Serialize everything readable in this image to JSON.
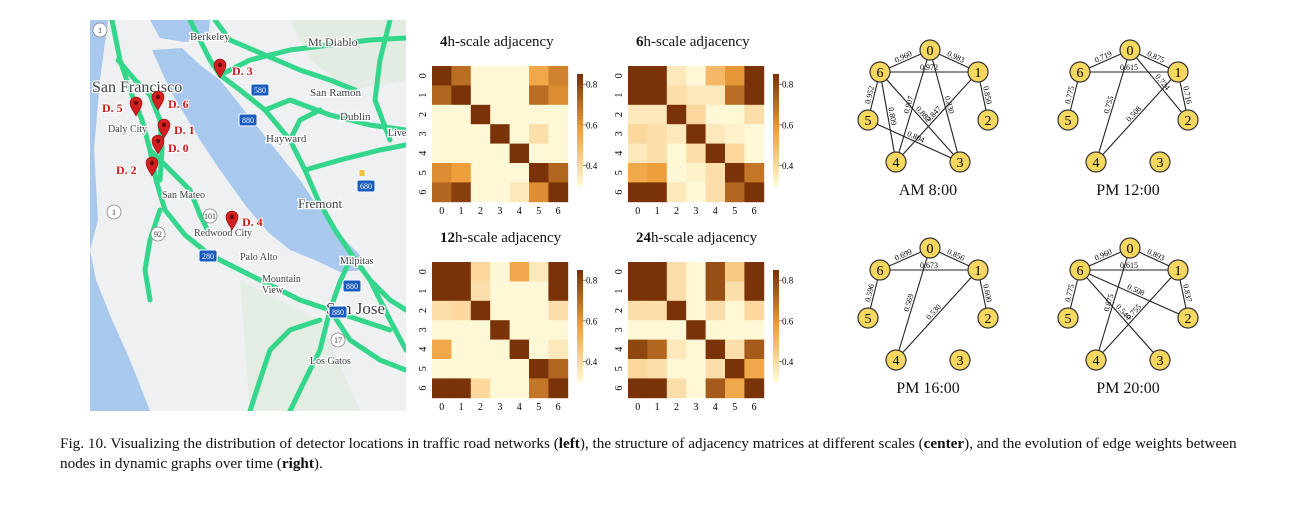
{
  "map": {
    "places": [
      {
        "id": "berkeley",
        "label": "Berkeley"
      },
      {
        "id": "mt-diablo",
        "label": "Mt Diablo"
      },
      {
        "id": "san-francisco",
        "label": "San Francisco"
      },
      {
        "id": "san-ramon",
        "label": "San Ramon"
      },
      {
        "id": "dublin",
        "label": "Dublin"
      },
      {
        "id": "daly-city",
        "label": "Daly City"
      },
      {
        "id": "hayward",
        "label": "Hayward"
      },
      {
        "id": "live",
        "label": "Live"
      },
      {
        "id": "san-mateo",
        "label": "San Mateo"
      },
      {
        "id": "fremont",
        "label": "Fremont"
      },
      {
        "id": "redwood-city",
        "label": "Redwood City"
      },
      {
        "id": "palo-alto",
        "label": "Palo Alto"
      },
      {
        "id": "milpitas",
        "label": "Milpitas"
      },
      {
        "id": "mountain-view",
        "label": "Mountain\nView"
      },
      {
        "id": "san-jose",
        "label": "San Jose"
      },
      {
        "id": "los-gatos",
        "label": "Los Gatos"
      }
    ],
    "shields": [
      "1",
      "580",
      "880",
      "680",
      "880",
      "101",
      "92",
      "1",
      "280",
      "17",
      "880"
    ],
    "detectors": [
      "D. 0",
      "D. 1",
      "D. 2",
      "D. 3",
      "D. 4",
      "D. 5",
      "D. 6"
    ]
  },
  "heatmaps": [
    {
      "title_bold": "4",
      "title_rest": "h-scale adjacency",
      "matrix": [
        [
          0.85,
          0.7,
          0.25,
          0.25,
          0.25,
          0.55,
          0.65
        ],
        [
          0.72,
          0.85,
          0.28,
          0.25,
          0.25,
          0.7,
          0.62
        ],
        [
          0.25,
          0.25,
          0.85,
          0.3,
          0.25,
          0.25,
          0.28
        ],
        [
          0.25,
          0.3,
          0.28,
          0.85,
          0.3,
          0.38,
          0.28
        ],
        [
          0.25,
          0.25,
          0.25,
          0.3,
          0.85,
          0.3,
          0.28
        ],
        [
          0.62,
          0.58,
          0.25,
          0.3,
          0.3,
          0.85,
          0.72
        ],
        [
          0.72,
          0.82,
          0.25,
          0.25,
          0.35,
          0.62,
          0.85
        ]
      ]
    },
    {
      "title_bold": "6",
      "title_rest": "h-scale adjacency",
      "matrix": [
        [
          0.85,
          0.85,
          0.35,
          0.3,
          0.5,
          0.6,
          0.85
        ],
        [
          0.85,
          0.85,
          0.38,
          0.35,
          0.35,
          0.7,
          0.85
        ],
        [
          0.35,
          0.35,
          0.85,
          0.4,
          0.3,
          0.3,
          0.38
        ],
        [
          0.4,
          0.38,
          0.35,
          0.85,
          0.35,
          0.32,
          0.3
        ],
        [
          0.35,
          0.38,
          0.3,
          0.38,
          0.85,
          0.4,
          0.3
        ],
        [
          0.55,
          0.58,
          0.3,
          0.32,
          0.38,
          0.85,
          0.68
        ],
        [
          0.85,
          0.85,
          0.35,
          0.3,
          0.38,
          0.72,
          0.85
        ]
      ]
    },
    {
      "title_bold": "12",
      "title_rest": "h-scale adjacency",
      "matrix": [
        [
          0.85,
          0.85,
          0.4,
          0.25,
          0.55,
          0.35,
          0.85
        ],
        [
          0.85,
          0.85,
          0.38,
          0.25,
          0.3,
          0.3,
          0.85
        ],
        [
          0.38,
          0.4,
          0.85,
          0.3,
          0.3,
          0.3,
          0.38
        ],
        [
          0.3,
          0.3,
          0.3,
          0.85,
          0.3,
          0.3,
          0.3
        ],
        [
          0.55,
          0.3,
          0.3,
          0.3,
          0.85,
          0.3,
          0.35
        ],
        [
          0.3,
          0.3,
          0.3,
          0.3,
          0.3,
          0.85,
          0.72
        ],
        [
          0.85,
          0.85,
          0.4,
          0.25,
          0.3,
          0.68,
          0.85
        ]
      ]
    },
    {
      "title_bold": "24",
      "title_rest": "h-scale adjacency",
      "matrix": [
        [
          0.85,
          0.85,
          0.38,
          0.25,
          0.78,
          0.45,
          0.85
        ],
        [
          0.85,
          0.85,
          0.38,
          0.3,
          0.78,
          0.38,
          0.85
        ],
        [
          0.38,
          0.38,
          0.85,
          0.3,
          0.38,
          0.3,
          0.4
        ],
        [
          0.25,
          0.3,
          0.3,
          0.85,
          0.3,
          0.3,
          0.3
        ],
        [
          0.8,
          0.72,
          0.35,
          0.3,
          0.85,
          0.38,
          0.75
        ],
        [
          0.4,
          0.38,
          0.3,
          0.3,
          0.38,
          0.85,
          0.55
        ],
        [
          0.85,
          0.85,
          0.38,
          0.3,
          0.75,
          0.55,
          0.85
        ]
      ]
    }
  ],
  "heatmap_axis": {
    "ticks": [
      "0",
      "1",
      "2",
      "3",
      "4",
      "5",
      "6"
    ],
    "colorbar_ticks": [
      "0.8",
      "0.6",
      "0.4"
    ]
  },
  "graphs": [
    {
      "caption": "AM 8:00",
      "edges": [
        {
          "a": 6,
          "b": 0,
          "w": "0.960"
        },
        {
          "a": 0,
          "b": 1,
          "w": "0.983"
        },
        {
          "a": 6,
          "b": 1,
          "w": "0.972"
        },
        {
          "a": 6,
          "b": 5,
          "w": "0.952"
        },
        {
          "a": 6,
          "b": 4,
          "w": "0.809"
        },
        {
          "a": 0,
          "b": 4,
          "w": "0.907"
        },
        {
          "a": 6,
          "b": 3,
          "w": "0.882"
        },
        {
          "a": 0,
          "b": 3,
          "w": "0.830"
        },
        {
          "a": 1,
          "b": 2,
          "w": "0.850"
        },
        {
          "a": 1,
          "b": 4,
          "w": "0.847"
        },
        {
          "a": 5,
          "b": 3,
          "w": "0.804"
        }
      ]
    },
    {
      "caption": "PM 12:00",
      "edges": [
        {
          "a": 6,
          "b": 0,
          "w": "0.719"
        },
        {
          "a": 0,
          "b": 1,
          "w": "0.875"
        },
        {
          "a": 6,
          "b": 1,
          "w": "0.615"
        },
        {
          "a": 6,
          "b": 5,
          "w": "0.775"
        },
        {
          "a": 0,
          "b": 4,
          "w": "0.755"
        },
        {
          "a": 0,
          "b": 2,
          "w": "0.724"
        },
        {
          "a": 1,
          "b": 2,
          "w": "0.716"
        },
        {
          "a": 1,
          "b": 4,
          "w": "0.508"
        }
      ]
    },
    {
      "caption": "PM 16:00",
      "edges": [
        {
          "a": 6,
          "b": 0,
          "w": "0.699"
        },
        {
          "a": 0,
          "b": 1,
          "w": "0.856"
        },
        {
          "a": 6,
          "b": 1,
          "w": "0.673"
        },
        {
          "a": 6,
          "b": 5,
          "w": "0.596"
        },
        {
          "a": 0,
          "b": 4,
          "w": "0.569"
        },
        {
          "a": 1,
          "b": 4,
          "w": "0.530"
        },
        {
          "a": 1,
          "b": 2,
          "w": "0.600"
        }
      ]
    },
    {
      "caption": "PM 20:00",
      "edges": [
        {
          "a": 6,
          "b": 0,
          "w": "0.960"
        },
        {
          "a": 0,
          "b": 1,
          "w": "0.893"
        },
        {
          "a": 6,
          "b": 1,
          "w": "0.615"
        },
        {
          "a": 6,
          "b": 5,
          "w": "0.775"
        },
        {
          "a": 0,
          "b": 4,
          "w": "0.875"
        },
        {
          "a": 6,
          "b": 2,
          "w": "0.508"
        },
        {
          "a": 1,
          "b": 2,
          "w": "0.837"
        },
        {
          "a": 6,
          "b": 3,
          "w": "0.540"
        },
        {
          "a": 1,
          "b": 4,
          "w": "0.755"
        }
      ]
    }
  ],
  "caption": {
    "parts": [
      {
        "text": "Fig. 10.  Visualizing the distribution of detector locations in traffic road networks (",
        "bold": false
      },
      {
        "text": "left",
        "bold": true
      },
      {
        "text": "), the structure of adjacency matrices at different scales (",
        "bold": false
      },
      {
        "text": "center",
        "bold": true
      },
      {
        "text": "), and the evolution of edge weights between nodes in dynamic graphs over time (",
        "bold": false
      },
      {
        "text": "right",
        "bold": true
      },
      {
        "text": ").",
        "bold": false
      }
    ]
  },
  "colors": {
    "heat_low": "#fff8d6",
    "heat_mid": "#f0a03c",
    "heat_high": "#7a3308",
    "node_fill": "#f6d860",
    "node_stroke": "#333333",
    "road": "#33d68a",
    "water": "#a8c8ee",
    "land": "#eef0f1",
    "pin": "#d22020"
  }
}
